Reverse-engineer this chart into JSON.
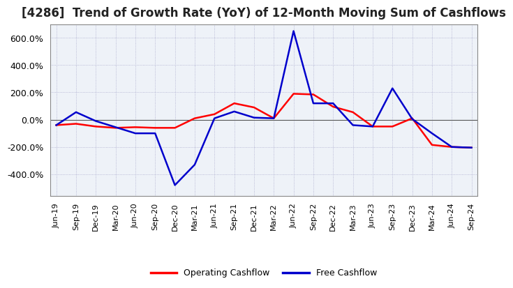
{
  "title": "[4286]  Trend of Growth Rate (YoY) of 12-Month Moving Sum of Cashflows",
  "title_fontsize": 12,
  "ylim": [
    -560,
    700
  ],
  "yticks": [
    -400,
    -200,
    0,
    200,
    400,
    600
  ],
  "background_color": "#ffffff",
  "plot_bg_color": "#eef2f8",
  "grid_color": "#aaaacc",
  "dates": [
    "Jun-19",
    "Sep-19",
    "Dec-19",
    "Mar-20",
    "Jun-20",
    "Sep-20",
    "Dec-20",
    "Mar-21",
    "Jun-21",
    "Sep-21",
    "Dec-21",
    "Mar-22",
    "Jun-22",
    "Sep-22",
    "Dec-22",
    "Mar-23",
    "Jun-23",
    "Sep-23",
    "Dec-23",
    "Mar-24",
    "Jun-24",
    "Sep-24"
  ],
  "operating_cf": [
    -40,
    -30,
    -50,
    -60,
    -55,
    -60,
    -60,
    10,
    40,
    120,
    90,
    10,
    190,
    185,
    95,
    55,
    -50,
    -50,
    10,
    -185,
    -200,
    -205
  ],
  "free_cf": [
    -40,
    55,
    -10,
    -55,
    -100,
    -100,
    -480,
    -330,
    10,
    60,
    15,
    10,
    650,
    120,
    120,
    -40,
    -50,
    230,
    5,
    -100,
    -200,
    -205
  ],
  "operating_color": "#ff0000",
  "free_color": "#0000cc",
  "line_width": 1.8
}
